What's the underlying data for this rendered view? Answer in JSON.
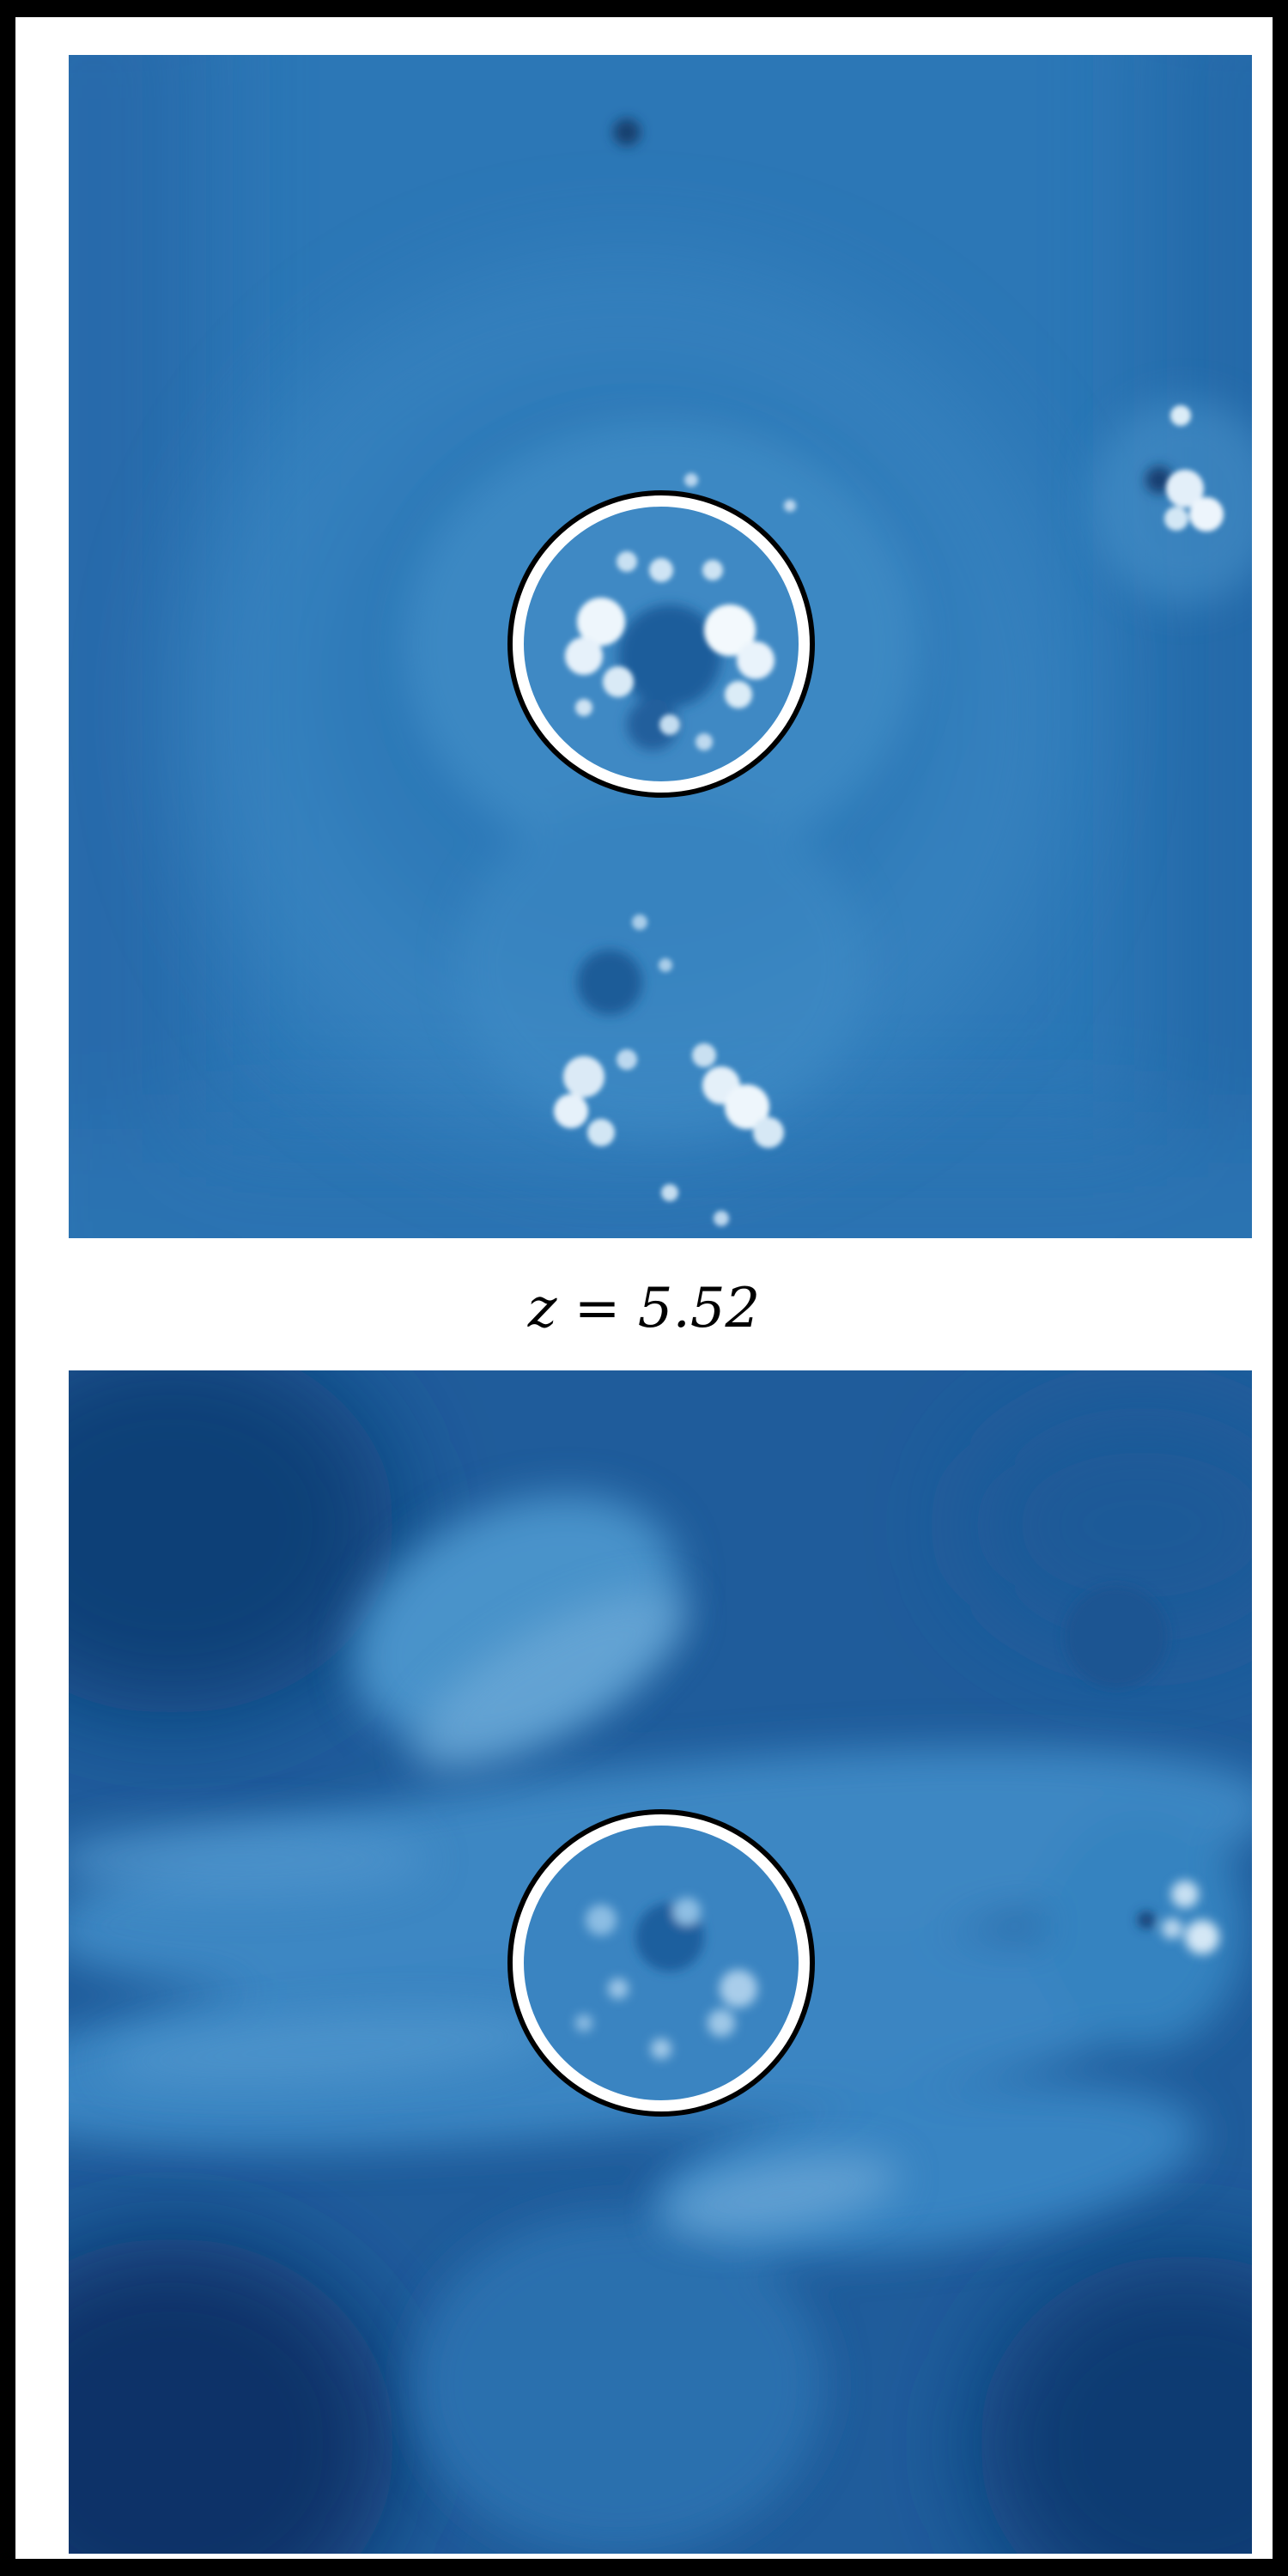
{
  "caption": "z = 5.52",
  "panels": [
    {
      "id": "top",
      "has_circle_marker": true
    },
    {
      "id": "bottom",
      "has_circle_marker": true
    }
  ],
  "colors": {
    "frame_border": "#000000",
    "page_background": "#ffffff",
    "map_mid_blue": "#2f7ab8",
    "map_dark_blue": "#0d3f78",
    "map_highlight": "#e8f3fb",
    "circle_outer_stroke": "#000000",
    "circle_inner_stroke": "#ffffff"
  }
}
